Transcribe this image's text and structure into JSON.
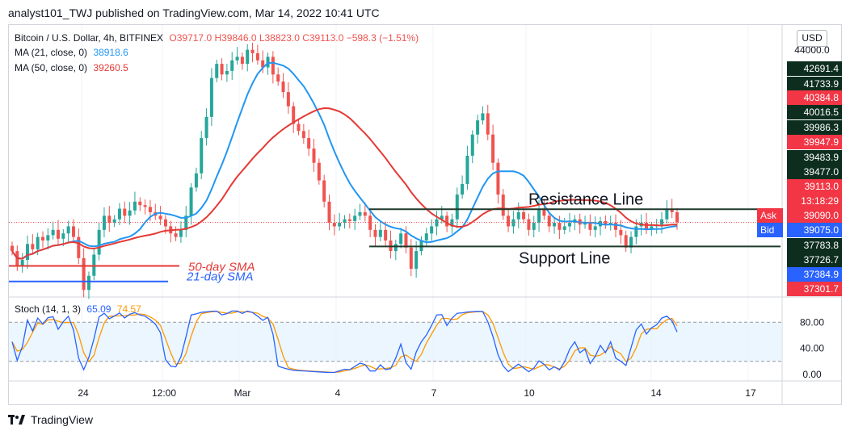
{
  "header": {
    "publish_line": "analyst101_TWJ published on TradingView.com, Mar 14, 2022 10:41 UTC"
  },
  "legend": {
    "symbol": "Bitcoin / U.S. Dollar, 4h, BITFINEX",
    "ohlc": "O39717.0 H39846.0 L38823.0 C39113.0 −598.3 (−1.51%)",
    "ma21_label": "MA (21, close, 0)",
    "ma21_value": "38918.6",
    "ma50_label": "MA (50, close, 0)",
    "ma50_value": "39260.5",
    "stoch_label": "Stoch (14, 1, 3)",
    "stoch_k": "65.09",
    "stoch_d": "74.57"
  },
  "currency_button": "USD",
  "annotations": {
    "resistance": "Resistance Line",
    "support": "Support Line",
    "sma50": "50-day SMA",
    "sma21": "21-day SMA"
  },
  "price_scale": {
    "top_tick": "44000.0",
    "labels": [
      {
        "text": "42691.4",
        "price": 42691.4,
        "bg": "#0d2e1f"
      },
      {
        "text": "41733.9",
        "price": 41733.9,
        "bg": "#0d2e1f"
      },
      {
        "text": "40384.8",
        "price": 40384.8,
        "bg": "#f23645"
      },
      {
        "text": "40016.5",
        "price": 40016.5,
        "bg": "#0d2e1f"
      },
      {
        "text": "39986.3",
        "price": 39986.3,
        "bg": "#0d2e1f"
      },
      {
        "text": "39947.9",
        "price": 39947.9,
        "bg": "#f23645"
      },
      {
        "text": "39483.9",
        "price": 39483.9,
        "bg": "#0d2e1f"
      },
      {
        "text": "39477.0",
        "price": 39477.0,
        "bg": "#0d2e1f"
      },
      {
        "text": "39113.0",
        "price": 39113.0,
        "bg": "#f23645",
        "sub": "13:18:29"
      },
      {
        "text": "39090.0",
        "price": 39090.0,
        "bg": "#f23645"
      },
      {
        "text": "39075.0",
        "price": 39075.0,
        "bg": "#2962ff"
      },
      {
        "text": "37783.8",
        "price": 37783.8,
        "bg": "#0d2e1f"
      },
      {
        "text": "37726.7",
        "price": 37726.7,
        "bg": "#0d2e1f"
      },
      {
        "text": "37384.9",
        "price": 37384.9,
        "bg": "#2962ff"
      },
      {
        "text": "37301.7",
        "price": 37301.7,
        "bg": "#f23645"
      }
    ],
    "ask_label": "Ask",
    "bid_label": "Bid"
  },
  "stoch_scale": [
    "80.00",
    "40.00",
    "0.00"
  ],
  "time_axis": [
    "24",
    "12:00",
    "Mar",
    "4",
    "7",
    "10",
    "14",
    "17"
  ],
  "footer": {
    "brand": "TradingView"
  },
  "colors": {
    "up": "#26a69a",
    "down": "#ef5350",
    "ma21": "#2196f3",
    "ma50": "#e53935",
    "stoch_k": "#2962ff",
    "stoch_d": "#ff9800"
  },
  "chart_data": [
    {
      "type": "candlestick",
      "title": "Bitcoin / U.S. Dollar, 4h, BITFINEX",
      "ylim": [
        37000,
        44700
      ],
      "x_ticks": [
        "24",
        "12:00",
        "Mar",
        "4",
        "7",
        "10",
        "14",
        "17"
      ],
      "closes": [
        38300,
        37900,
        38050,
        38500,
        38350,
        38700,
        38600,
        38750,
        38900,
        38650,
        38800,
        39000,
        38700,
        38100,
        37200,
        37600,
        38200,
        38900,
        39300,
        39100,
        39200,
        39500,
        39300,
        39450,
        39700,
        39600,
        39550,
        39400,
        39300,
        39200,
        39000,
        38800,
        38700,
        38900,
        39300,
        40100,
        40500,
        41500,
        42100,
        43200,
        43600,
        43300,
        43400,
        43700,
        43800,
        43600,
        44000,
        43900,
        43700,
        43500,
        43800,
        43300,
        43100,
        42800,
        42400,
        41900,
        41700,
        41500,
        41200,
        40800,
        40300,
        39700,
        39100,
        39000,
        39100,
        39200,
        39150,
        39300,
        39400,
        39300,
        38900,
        38700,
        38900,
        38600,
        38300,
        38500,
        38800,
        38400,
        37800,
        38300,
        38600,
        38800,
        39000,
        39200,
        39300,
        39000,
        39200,
        39900,
        40200,
        41000,
        41600,
        42000,
        42200,
        41600,
        40800,
        39900,
        39300,
        39000,
        39200,
        39400,
        39200,
        38900,
        39100,
        39500,
        39300,
        39000,
        39100,
        38900,
        39000,
        39100,
        39200,
        39050,
        39100,
        38900,
        39000,
        39150,
        39050,
        39100,
        38900,
        38750,
        38400,
        38700,
        39000,
        39100,
        38900,
        39000,
        39050,
        39200,
        39500,
        39400,
        39113
      ],
      "series": [
        {
          "name": "MA (21, close, 0)",
          "last_value": 38918.6
        },
        {
          "name": "MA (50, close, 0)",
          "last_value": 39260.5
        }
      ],
      "levels": [
        {
          "label": "Resistance Line",
          "value": 39483.9
        },
        {
          "label": "Support Line",
          "value": 38430
        },
        {
          "label": "50-day SMA",
          "value": 37880
        },
        {
          "label": "21-day SMA",
          "value": 37440
        }
      ]
    },
    {
      "type": "line",
      "title": "Stoch (14, 1, 3)",
      "ylim": [
        -10,
        115
      ],
      "yticks": [
        0,
        40,
        80
      ],
      "bands": [
        20,
        80
      ],
      "series": [
        {
          "name": "%K",
          "last_value": 65.09
        },
        {
          "name": "%D",
          "last_value": 74.57
        }
      ]
    }
  ]
}
